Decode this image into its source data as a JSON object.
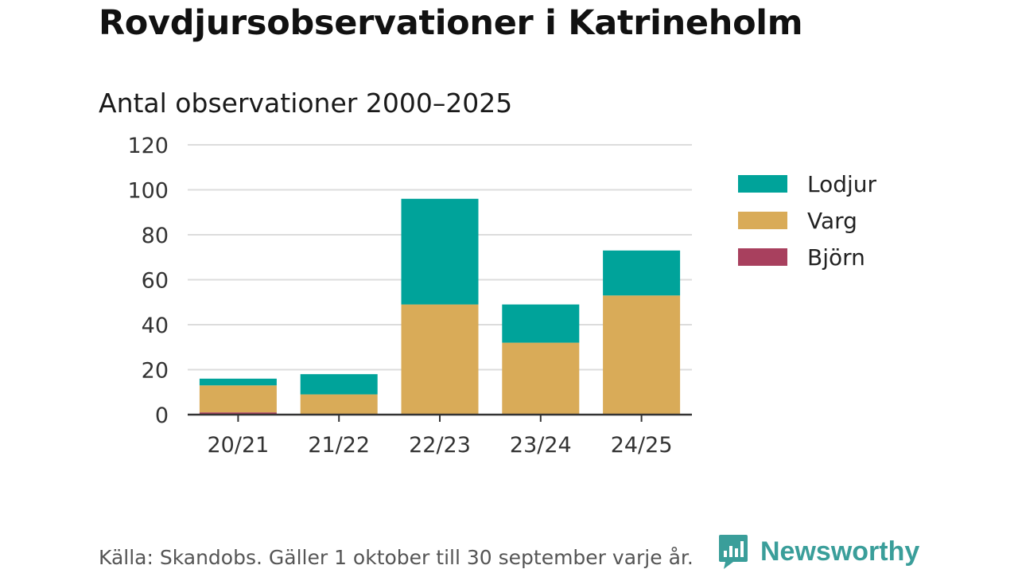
{
  "header": {
    "title": "Rovdjursobservationer i Katrineholm",
    "subtitle": "Antal observationer 2000–2025"
  },
  "chart_data": {
    "type": "bar",
    "stacked": true,
    "title": "Rovdjursobservationer i Katrineholm",
    "subtitle": "Antal observationer 2000–2025",
    "xlabel": "",
    "ylabel": "",
    "ylim": [
      0,
      120
    ],
    "yticks": [
      "0",
      "20",
      "40",
      "60",
      "80",
      "100",
      "120"
    ],
    "grid": true,
    "legend_position": "right",
    "categories": [
      "20/21",
      "21/22",
      "22/23",
      "23/24",
      "24/25"
    ],
    "series": [
      {
        "name": "Björn",
        "color": "#a8405e",
        "values": [
          1,
          0,
          0,
          0,
          0
        ]
      },
      {
        "name": "Varg",
        "color": "#d9ab58",
        "values": [
          12,
          9,
          49,
          32,
          53
        ]
      },
      {
        "name": "Lodjur",
        "color": "#00a39a",
        "values": [
          3,
          9,
          47,
          17,
          20
        ]
      }
    ]
  },
  "legend": {
    "items": [
      {
        "label": "Lodjur",
        "color": "#00a39a"
      },
      {
        "label": "Varg",
        "color": "#d9ab58"
      },
      {
        "label": "Björn",
        "color": "#a8405e"
      }
    ]
  },
  "footer": {
    "source": "Källa: Skandobs. Gäller 1 oktober till 30 september varje år.",
    "brand": "Newsworthy",
    "brand_color": "#3a9e9a"
  }
}
